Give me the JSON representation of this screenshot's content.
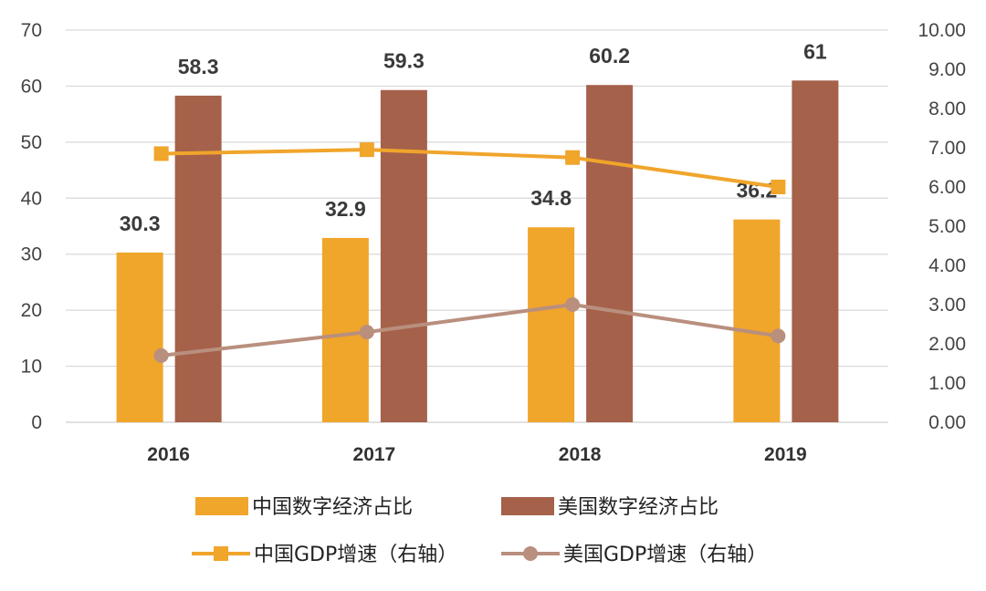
{
  "chart_data": {
    "type": "bar",
    "categories": [
      "2016",
      "2017",
      "2018",
      "2019"
    ],
    "series": [
      {
        "name": "中国数字经济占比",
        "kind": "bar",
        "axis": "left",
        "color": "#F0A52B",
        "values": [
          30.3,
          32.9,
          34.8,
          36.2
        ],
        "labels": [
          "30.3",
          "32.9",
          "34.8",
          "36.2"
        ]
      },
      {
        "name": "美国数字经济占比",
        "kind": "bar",
        "axis": "left",
        "color": "#A5614A",
        "values": [
          58.3,
          59.3,
          60.2,
          61
        ],
        "labels": [
          "58.3",
          "59.3",
          "60.2",
          "61"
        ]
      },
      {
        "name": "中国GDP增速（右轴）",
        "kind": "line",
        "axis": "right",
        "color": "#F0A52B",
        "marker": "square",
        "values": [
          6.85,
          6.95,
          6.75,
          6.0
        ]
      },
      {
        "name": "美国GDP增速（右轴）",
        "kind": "line",
        "axis": "right",
        "color": "#B98F7E",
        "marker": "circle",
        "values": [
          1.7,
          2.3,
          3.0,
          2.2
        ]
      }
    ],
    "y_left": {
      "min": 0,
      "max": 70,
      "ticks": [
        "0",
        "10",
        "20",
        "30",
        "40",
        "50",
        "60",
        "70"
      ]
    },
    "y_right": {
      "min": 0,
      "max": 10,
      "ticks": [
        "0.00",
        "1.00",
        "2.00",
        "3.00",
        "4.00",
        "5.00",
        "6.00",
        "7.00",
        "8.00",
        "9.00",
        "10.00"
      ]
    },
    "grid": true,
    "legend_position": "bottom",
    "title": "",
    "xlabel": "",
    "ylabel": ""
  }
}
